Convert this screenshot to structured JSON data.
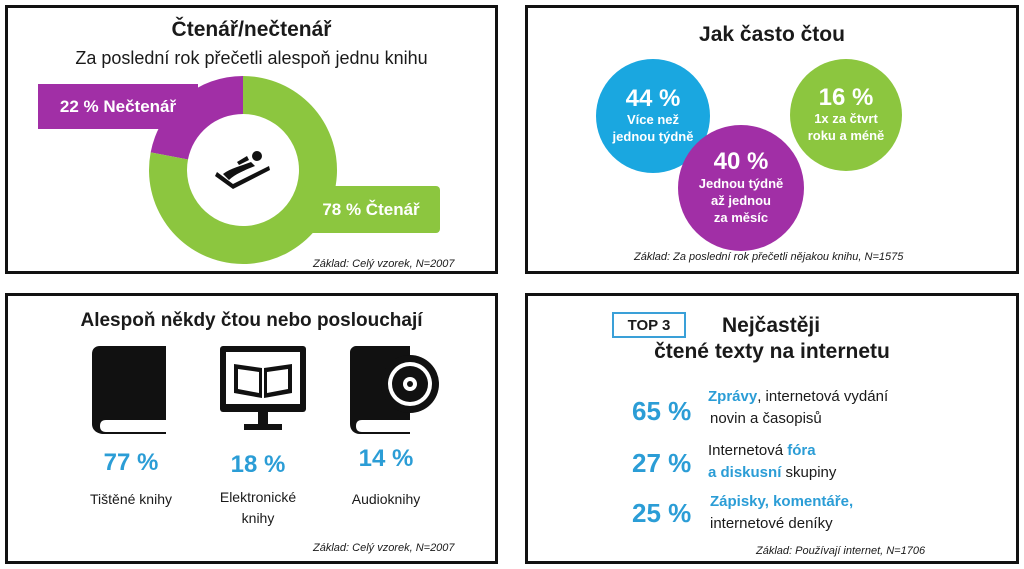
{
  "panel1": {
    "title": "Čtenář/nečtenář",
    "subtitle": "Za poslední rok přečetli alespoň jednu knihu",
    "nonreader_label": "22 % Nečtenář",
    "reader_label": "78 % Čtenář",
    "base": "Základ: Celý vzorek, N=2007",
    "icon": "reader-reclining-icon"
  },
  "panel2": {
    "title": "Jak často čtou",
    "bubbles": [
      {
        "pct": "44 %",
        "line1": "Více než",
        "line2": "jednou týdně",
        "line3": "",
        "color": "#1aa7e0"
      },
      {
        "pct": "40 %",
        "line1": "Jednou týdně",
        "line2": "až jednou",
        "line3": "za měsíc",
        "color": "#a12fa6"
      },
      {
        "pct": "16 %",
        "line1": "1x za čtvrt",
        "line2": "roku a méně",
        "line3": "",
        "color": "#8cc63f"
      }
    ],
    "base": "Základ: Za poslední rok přečetli nějakou knihu, N=1575"
  },
  "panel3": {
    "title": "Alespoň někdy čtou nebo poslouchají",
    "items": [
      {
        "pct": "77 %",
        "line1": "Tištěné knihy",
        "line2": "",
        "icon": "printed-book-icon"
      },
      {
        "pct": "18 %",
        "line1": "Elektronické",
        "line2": "knihy",
        "icon": "ebook-monitor-icon"
      },
      {
        "pct": "14 %",
        "line1": "Audioknihy",
        "line2": "",
        "icon": "audiobook-cd-icon"
      }
    ],
    "base": "Základ: Celý vzorek, N=2007"
  },
  "panel4": {
    "badge": "TOP 3",
    "title_line1": "Nejčastěji",
    "title_line2": "čtené texty na internetu",
    "rows": [
      {
        "pct": "65 %",
        "hl1": "Zprávy",
        "t1": ", internetová vydání",
        "line2_pre": "novin a časopisů",
        "line2_hl": "",
        "line2_post": ""
      },
      {
        "pct": "27 %",
        "pre1": "Internetová ",
        "hl1": "fóra",
        "line2_pre": "",
        "line2_hl": "a diskusní",
        "line2_post": " skupiny"
      },
      {
        "pct": "25 %",
        "hl1": "Zápisky, komentáře,",
        "line2_pre": "internetové deníky",
        "line2_hl": "",
        "line2_post": ""
      }
    ],
    "base": "Základ: Používají internet, N=1706"
  },
  "chart_data": [
    {
      "type": "pie",
      "title": "Čtenář/nečtenář",
      "subtitle": "Za poslední rok přečetli alespoň jednu knihu",
      "categories": [
        "Nečtenář",
        "Čtenář"
      ],
      "values": [
        22,
        78
      ],
      "colors": [
        "#a12fa6",
        "#8cc63f"
      ],
      "donut": true,
      "note": "Základ: Celý vzorek, N=2007"
    },
    {
      "type": "bubble",
      "title": "Jak často čtou",
      "categories": [
        "Více než jednou týdně",
        "Jednou týdně až jednou za měsíc",
        "1x za čtvrt roku a méně"
      ],
      "values": [
        44,
        40,
        16
      ],
      "colors": [
        "#1aa7e0",
        "#a12fa6",
        "#8cc63f"
      ],
      "note": "Základ: Za poslední rok přečetli nějakou knihu, N=1575"
    },
    {
      "type": "table",
      "title": "Alespoň někdy čtou nebo poslouchají",
      "categories": [
        "Tištěné knihy",
        "Elektronické knihy",
        "Audioknihy"
      ],
      "values": [
        77,
        18,
        14
      ],
      "note": "Základ: Celý vzorek, N=2007"
    },
    {
      "type": "table",
      "title": "Nejčastěji čtené texty na internetu",
      "categories": [
        "Zprávy, internetová vydání novin a časopisů",
        "Internetová fóra a diskusní skupiny",
        "Zápisky, komentáře, internetové deníky"
      ],
      "values": [
        65,
        27,
        25
      ],
      "note": "Základ: Používají internet, N=1706"
    }
  ]
}
